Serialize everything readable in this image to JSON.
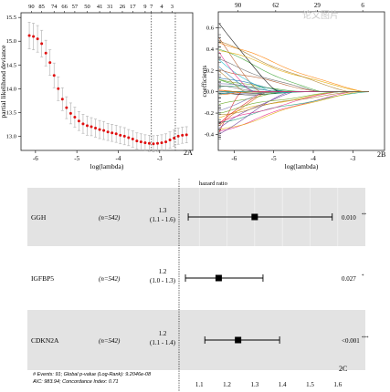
{
  "figure": {
    "panel_a_tag": "2A",
    "panel_b_tag": "2B",
    "panel_c_tag": "2C",
    "watermark": "论文图片"
  },
  "chart_data": [
    {
      "type": "scatter",
      "panel": "A",
      "xlabel": "log(lambda)",
      "ylabel": "partial likelihood deviance",
      "xlim": [
        -6.35,
        -2.2
      ],
      "ylim": [
        12.7,
        15.6
      ],
      "x_ticks": [
        -6,
        -5,
        -4,
        -3
      ],
      "y_ticks": [
        13.0,
        13.5,
        14.0,
        14.5,
        15.0,
        15.5
      ],
      "top_ticks": {
        "positions": [
          -6.1,
          -5.85,
          -5.55,
          -5.3,
          -5.05,
          -4.75,
          -4.45,
          -4.2,
          -3.9,
          -3.65,
          -3.35,
          -3.2,
          -2.95,
          -2.7
        ],
        "labels": [
          "90",
          "85",
          "74",
          "66",
          "57",
          "50",
          "41",
          "31",
          "26",
          "17",
          "9",
          "7",
          "4",
          "3"
        ]
      },
      "vlines": [
        -3.2,
        -2.62
      ],
      "x": [
        -6.15,
        -6.05,
        -5.95,
        -5.85,
        -5.75,
        -5.65,
        -5.55,
        -5.45,
        -5.35,
        -5.25,
        -5.15,
        -5.05,
        -4.95,
        -4.85,
        -4.75,
        -4.65,
        -4.55,
        -4.45,
        -4.35,
        -4.25,
        -4.15,
        -4.05,
        -3.95,
        -3.85,
        -3.75,
        -3.65,
        -3.55,
        -3.45,
        -3.35,
        -3.25,
        -3.15,
        -3.05,
        -2.95,
        -2.85,
        -2.75,
        -2.65,
        -2.55,
        -2.45,
        -2.35
      ],
      "y": [
        15.12,
        15.1,
        15.05,
        14.95,
        14.75,
        14.55,
        14.28,
        14.0,
        13.78,
        13.6,
        13.48,
        13.4,
        13.32,
        13.26,
        13.22,
        13.2,
        13.17,
        13.14,
        13.12,
        13.09,
        13.07,
        13.05,
        13.02,
        13.0,
        12.97,
        12.94,
        12.9,
        12.88,
        12.86,
        12.85,
        12.84,
        12.85,
        12.86,
        12.88,
        12.92,
        12.96,
        13.0,
        13.02,
        13.03
      ],
      "err": [
        0.28,
        0.28,
        0.28,
        0.28,
        0.27,
        0.27,
        0.26,
        0.25,
        0.24,
        0.23,
        0.22,
        0.21,
        0.2,
        0.2,
        0.2,
        0.19,
        0.19,
        0.19,
        0.19,
        0.18,
        0.18,
        0.18,
        0.18,
        0.18,
        0.17,
        0.17,
        0.17,
        0.17,
        0.17,
        0.17,
        0.17,
        0.17,
        0.17,
        0.17,
        0.17,
        0.17,
        0.17,
        0.17,
        0.17
      ]
    },
    {
      "type": "line",
      "panel": "B",
      "xlabel": "log(lambda)",
      "ylabel": "coefficients",
      "xlim": [
        -6.4,
        -2.2
      ],
      "ylim": [
        -0.55,
        0.75
      ],
      "x_ticks": [
        -6,
        -5,
        -4,
        -3
      ],
      "y_ticks": [
        -0.4,
        -0.2,
        0.0,
        0.2,
        0.4,
        0.6
      ],
      "top_ticks": {
        "positions": [
          -5.9,
          -4.95,
          -3.9,
          -2.75
        ],
        "labels": [
          "90",
          "62",
          "29",
          "6"
        ]
      },
      "series_count": 40
    },
    {
      "type": "forest",
      "panel": "C",
      "title": "hazard ratio",
      "x_ticks": [
        1.1,
        1.2,
        1.3,
        1.4,
        1.5,
        1.6
      ],
      "xlim": [
        1.04,
        1.66
      ],
      "rows": [
        {
          "gene": "GGH",
          "n": "(n=542)",
          "hr": "1.3",
          "ci": "(1.1 - 1.6)",
          "est": 1.3,
          "lo": 1.06,
          "hi": 1.58,
          "pval": "0.010",
          "stars": "**",
          "shaded": true
        },
        {
          "gene": "IGFBP5",
          "n": "(n=542)",
          "hr": "1.2",
          "ci": "(1.0 - 1.3)",
          "est": 1.17,
          "lo": 1.05,
          "hi": 1.33,
          "pval": "0.027",
          "stars": "*",
          "shaded": false
        },
        {
          "gene": "CDKN2A",
          "n": "(n=542)",
          "hr": "1.2",
          "ci": "(1.1 - 1.4)",
          "est": 1.24,
          "lo": 1.12,
          "hi": 1.39,
          "pval": "<0.001",
          "stars": "***",
          "shaded": true
        }
      ],
      "footer_line1": "# Events: 91; Global p-value (Log-Rank): 9.2046e-08",
      "footer_line2": "AIC: 983.94; Concordance Index: 0.71"
    }
  ]
}
